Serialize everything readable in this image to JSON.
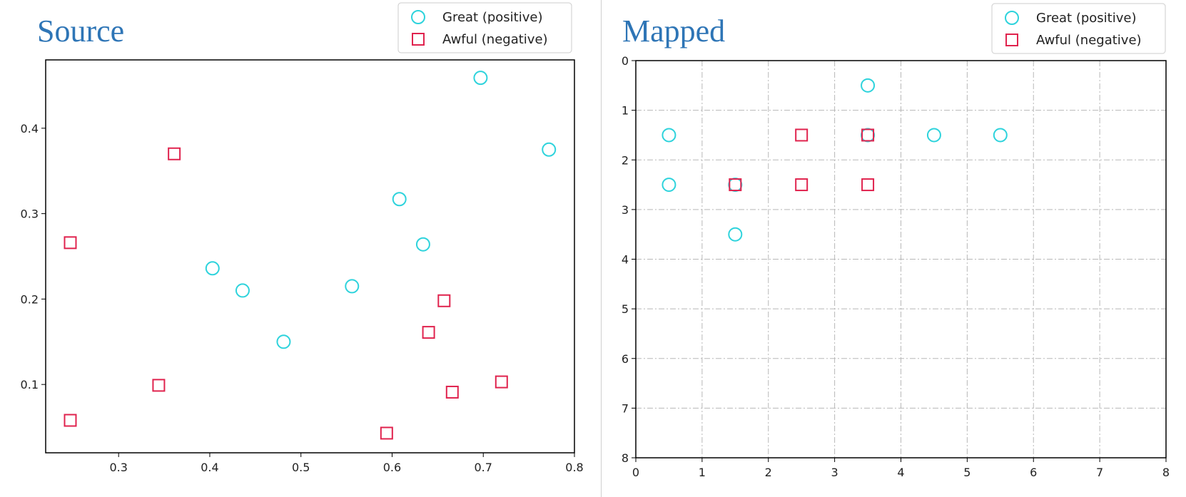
{
  "colors": {
    "positive": "#2ed3dc",
    "negative": "#e0234e",
    "title": "#2e75b6",
    "grid": "#b8b8b8"
  },
  "chart_data": [
    {
      "type": "scatter",
      "title": "Source",
      "xlabel": "",
      "ylabel": "",
      "xlim": [
        0.22,
        0.8
      ],
      "ylim": [
        0.02,
        0.48
      ],
      "xticks": [
        0.3,
        0.4,
        0.5,
        0.6,
        0.7,
        0.8
      ],
      "yticks": [
        0.1,
        0.2,
        0.3,
        0.4
      ],
      "grid": false,
      "y_inverted": false,
      "legend_placement": "top-right",
      "series": [
        {
          "name": "Great (positive)",
          "marker": "circle",
          "points": [
            [
              0.697,
              0.459
            ],
            [
              0.772,
              0.375
            ],
            [
              0.608,
              0.317
            ],
            [
              0.634,
              0.264
            ],
            [
              0.403,
              0.236
            ],
            [
              0.436,
              0.21
            ],
            [
              0.556,
              0.215
            ],
            [
              0.481,
              0.15
            ]
          ]
        },
        {
          "name": "Awful (negative)",
          "marker": "square",
          "points": [
            [
              0.361,
              0.37
            ],
            [
              0.247,
              0.266
            ],
            [
              0.657,
              0.198
            ],
            [
              0.64,
              0.161
            ],
            [
              0.344,
              0.099
            ],
            [
              0.72,
              0.103
            ],
            [
              0.666,
              0.091
            ],
            [
              0.247,
              0.058
            ],
            [
              0.594,
              0.043
            ]
          ]
        }
      ]
    },
    {
      "type": "scatter",
      "title": "Mapped",
      "xlabel": "",
      "ylabel": "",
      "xlim": [
        0,
        8
      ],
      "ylim": [
        0,
        8
      ],
      "xticks": [
        0,
        1,
        2,
        3,
        4,
        5,
        6,
        7,
        8
      ],
      "yticks": [
        0,
        1,
        2,
        3,
        4,
        5,
        6,
        7,
        8
      ],
      "grid": true,
      "y_inverted": true,
      "legend_placement": "top-right",
      "series": [
        {
          "name": "Great (positive)",
          "marker": "circle",
          "points": [
            [
              3.5,
              0.5
            ],
            [
              0.5,
              1.5
            ],
            [
              3.5,
              1.5
            ],
            [
              4.5,
              1.5
            ],
            [
              5.5,
              1.5
            ],
            [
              0.5,
              2.5
            ],
            [
              1.5,
              2.5
            ],
            [
              1.5,
              3.5
            ]
          ]
        },
        {
          "name": "Awful (negative)",
          "marker": "square",
          "points": [
            [
              2.5,
              1.5
            ],
            [
              3.5,
              1.5
            ],
            [
              1.5,
              2.5
            ],
            [
              2.5,
              2.5
            ],
            [
              3.5,
              2.5
            ]
          ]
        }
      ]
    }
  ]
}
